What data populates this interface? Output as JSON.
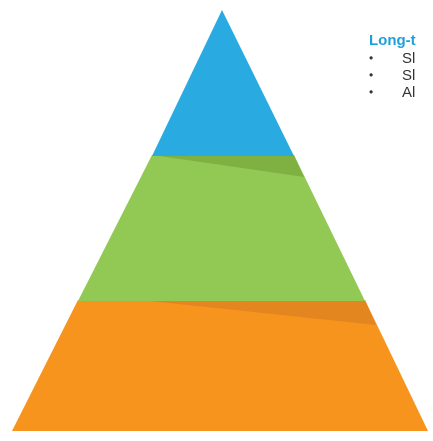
{
  "pyramid": {
    "tiers": [
      {
        "name": "top",
        "color": "#29abe2",
        "shade": "#7fb142"
      },
      {
        "name": "middle",
        "color": "#92c955",
        "shade": "#e3861f"
      },
      {
        "name": "bottom",
        "color": "#f7941d"
      }
    ]
  },
  "callout": {
    "title": "Long-t",
    "bullet_char": "•",
    "items": [
      {
        "text": "Sl"
      },
      {
        "text": "Sl"
      },
      {
        "text": "Al"
      }
    ]
  }
}
